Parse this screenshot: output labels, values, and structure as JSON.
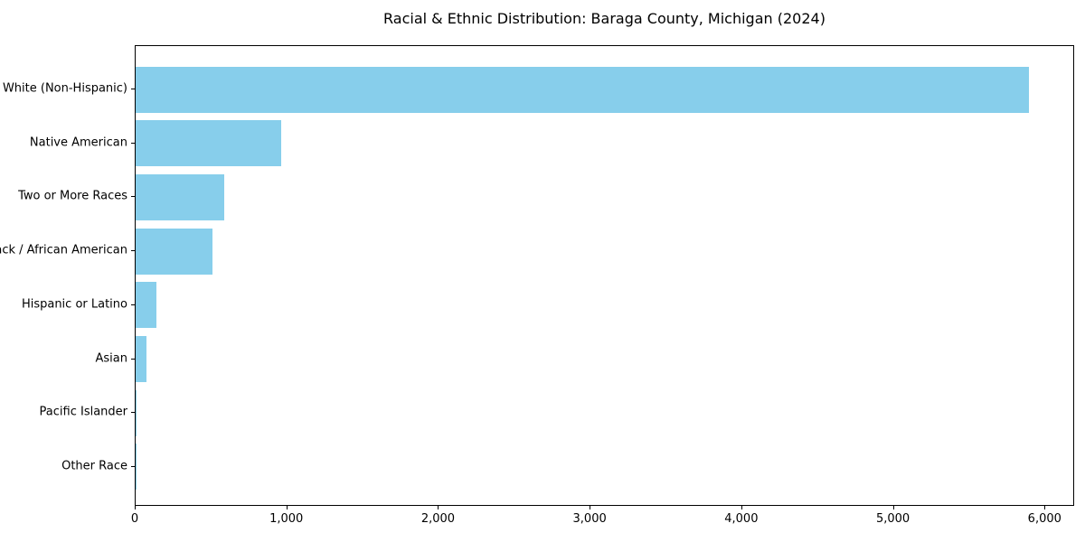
{
  "figure": {
    "background": "#ffffff"
  },
  "chart_data": {
    "type": "bar",
    "orientation": "horizontal",
    "title": "Racial & Ethnic Distribution: Baraga County, Michigan (2024)",
    "categories": [
      "White (Non-Hispanic)",
      "Native American",
      "Two or More Races",
      "Black / African American",
      "Hispanic or Latino",
      "Asian",
      "Pacific Islander",
      "Other Race"
    ],
    "values": [
      5890,
      960,
      585,
      505,
      140,
      70,
      5,
      5
    ],
    "xlabel": "",
    "ylabel": "",
    "xlim": [
      0,
      6195
    ],
    "xticks": [
      0,
      1000,
      2000,
      3000,
      4000,
      5000,
      6000
    ],
    "xtick_labels": [
      "0",
      "1,000",
      "2,000",
      "3,000",
      "4,000",
      "5,000",
      "6,000"
    ],
    "bar_color": "#87CEEB",
    "axis_color": "#000000",
    "text_color": "#000000",
    "grid": false,
    "legend": "none"
  }
}
